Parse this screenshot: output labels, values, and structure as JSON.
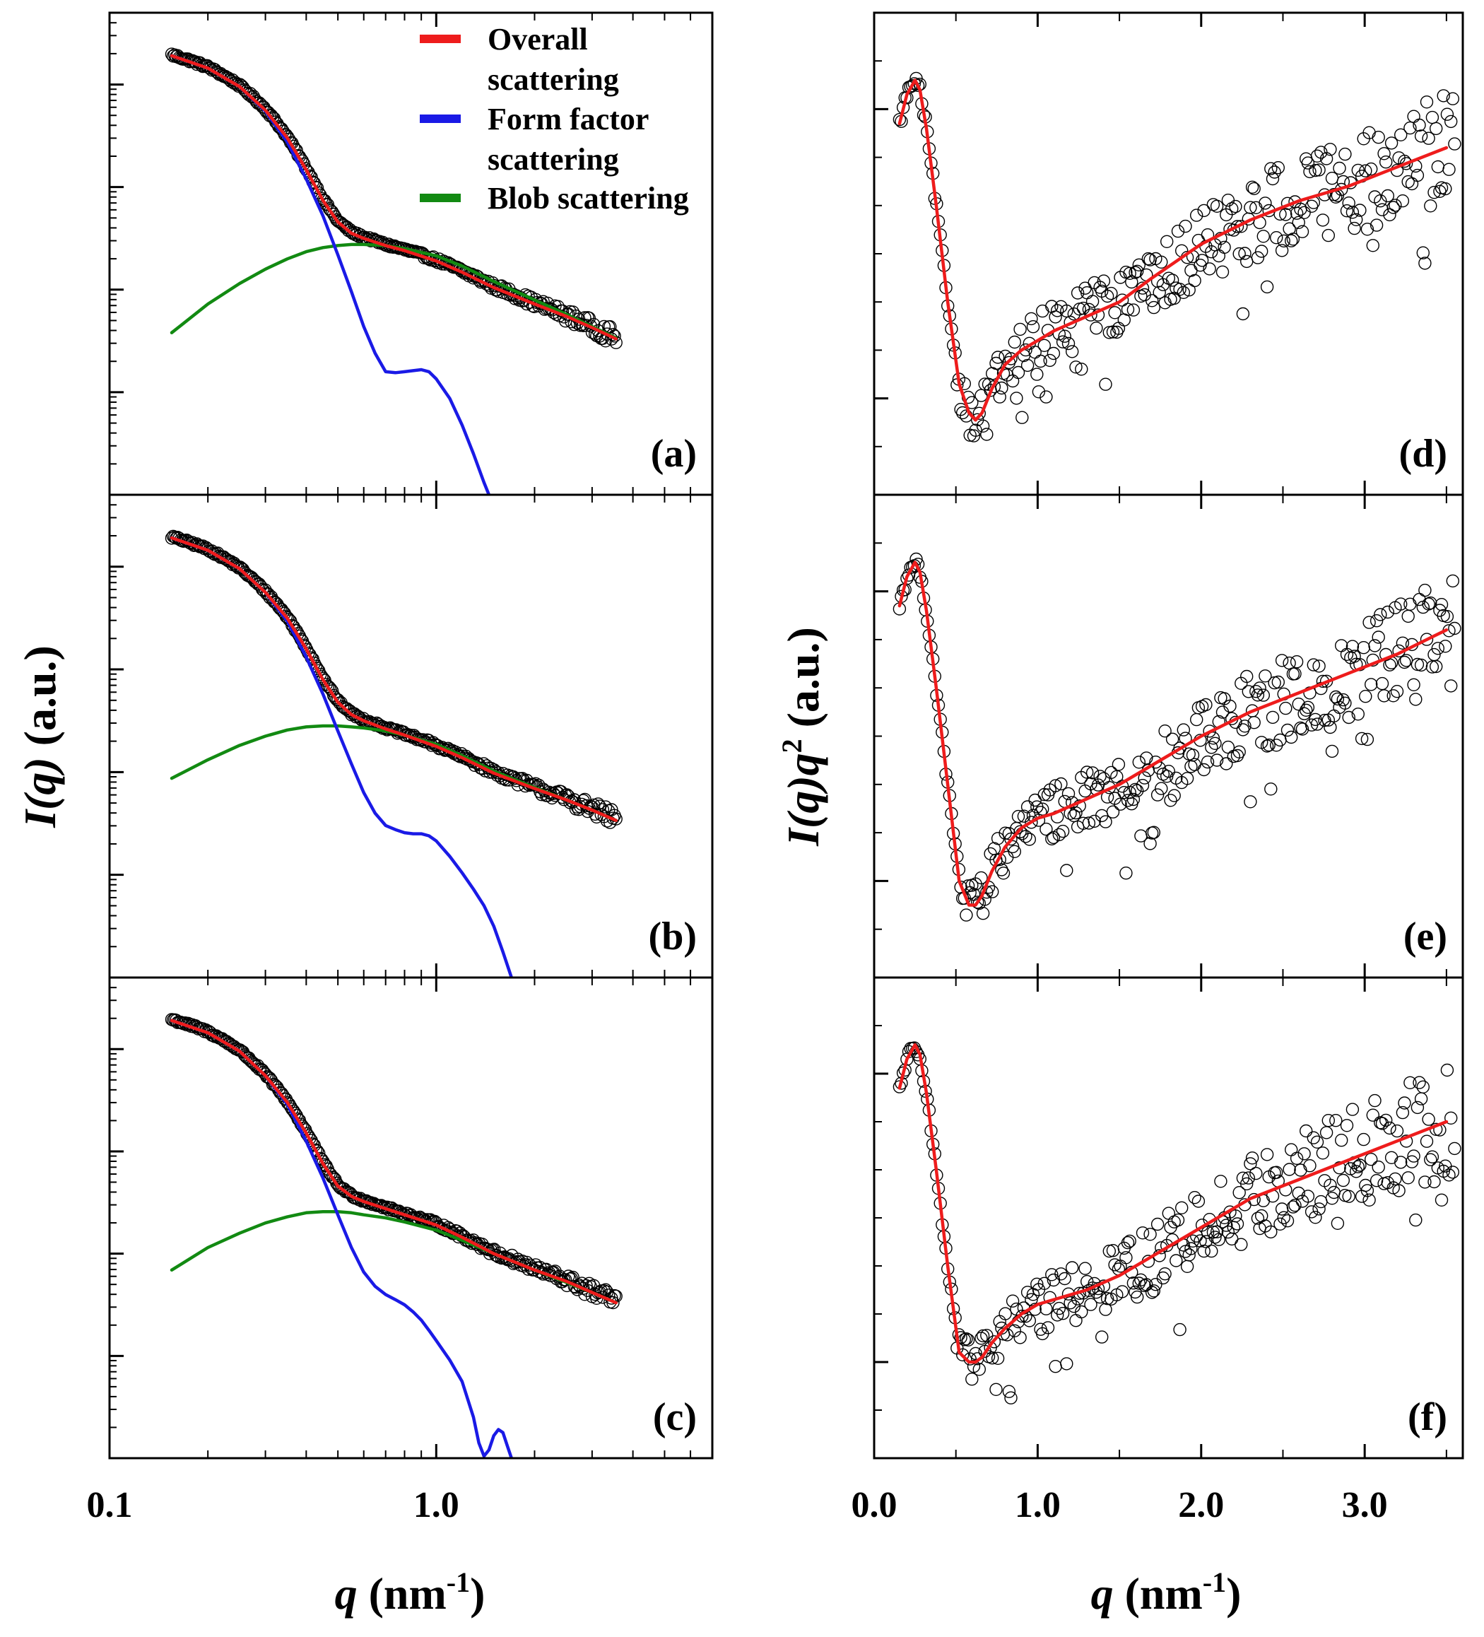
{
  "chart_data": {
    "type": "scatter",
    "title": "",
    "shared_axes": {
      "left_column": {
        "xlabel_sym": "q",
        "xlabel_unit": " (nm",
        "xlabel_sup": "-1",
        "xlabel_close": ")",
        "ylabel_sym": "I(q)",
        "ylabel_unit": " (a.u.)",
        "xscale": "log",
        "yscale": "log",
        "xlim": [
          0.1,
          7.0
        ],
        "xticks": [
          0.1,
          1.0
        ],
        "xtick_labels": [
          "0.1",
          "1.0"
        ]
      },
      "right_column": {
        "xlabel_sym": "q",
        "xlabel_unit": " (nm",
        "xlabel_sup": "-1",
        "xlabel_close": ")",
        "ylabel_sym": "I(q)q",
        "ylabel_sup": "2",
        "ylabel_unit": " (a.u.)",
        "xscale": "linear",
        "yscale": "linear",
        "xlim": [
          0.0,
          3.6
        ],
        "xticks": [
          0.0,
          1.0,
          2.0,
          3.0
        ],
        "xtick_labels": [
          "0.0",
          "1.0",
          "2.0",
          "3.0"
        ]
      }
    },
    "legend": {
      "placement": "top-right of panel (a)",
      "entries": [
        {
          "line1": "Overall",
          "line2": "scattering",
          "color": "#ee1c1c"
        },
        {
          "line1": "Form factor",
          "line2": "scattering",
          "color": "#1a1ae6"
        },
        {
          "line1": "Blob scattering",
          "line2": "",
          "color": "#128a12"
        }
      ]
    },
    "colors": {
      "overall": "#ee1c1c",
      "form_factor": "#1a1ae6",
      "blob": "#128a12",
      "data_points": "#000000"
    },
    "panels": [
      {
        "id": "a",
        "label": "(a)",
        "kind": "log",
        "ylim": [
          0,
          4.7
        ],
        "note": "y in decades (log10 I, arbitrary offset)",
        "series": [
          {
            "name": "Overall scattering",
            "kind": "line",
            "x": [
              0.155,
              0.2,
              0.25,
              0.3,
              0.35,
              0.4,
              0.45,
              0.5,
              0.55,
              0.6,
              0.7,
              0.8,
              1.0,
              1.2,
              1.5,
              2.0,
              2.5,
              3.0,
              3.55
            ],
            "y": [
              4.28,
              4.16,
              3.98,
              3.75,
              3.48,
              3.17,
              2.87,
              2.66,
              2.55,
              2.5,
              2.43,
              2.38,
              2.28,
              2.17,
              2.02,
              1.86,
              1.74,
              1.63,
              1.52
            ]
          },
          {
            "name": "Form factor scattering",
            "kind": "line",
            "x": [
              0.155,
              0.2,
              0.25,
              0.3,
              0.35,
              0.4,
              0.45,
              0.5,
              0.55,
              0.6,
              0.65,
              0.7,
              0.75,
              0.8,
              0.85,
              0.9,
              0.95,
              1.0,
              1.1,
              1.2,
              1.3,
              1.4,
              1.45
            ],
            "y": [
              4.28,
              4.16,
              3.98,
              3.74,
              3.44,
              3.08,
              2.72,
              2.34,
              1.98,
              1.64,
              1.38,
              1.2,
              1.19,
              1.2,
              1.21,
              1.22,
              1.2,
              1.13,
              0.94,
              0.68,
              0.4,
              0.12,
              0.0
            ]
          },
          {
            "name": "Blob scattering",
            "kind": "line",
            "x": [
              0.155,
              0.2,
              0.25,
              0.3,
              0.35,
              0.4,
              0.45,
              0.5,
              0.55,
              0.6,
              0.7,
              0.8,
              1.0,
              1.2,
              1.5,
              2.0,
              2.5,
              3.0,
              3.55
            ],
            "y": [
              1.58,
              1.86,
              2.06,
              2.2,
              2.3,
              2.37,
              2.41,
              2.43,
              2.44,
              2.44,
              2.43,
              2.4,
              2.33,
              2.23,
              2.08,
              1.9,
              1.76,
              1.64,
              1.53
            ]
          }
        ]
      },
      {
        "id": "b",
        "label": "(b)",
        "kind": "log",
        "ylim": [
          0,
          4.7
        ],
        "series": [
          {
            "name": "Overall scattering",
            "kind": "line",
            "x": [
              0.155,
              0.2,
              0.25,
              0.3,
              0.35,
              0.4,
              0.45,
              0.5,
              0.55,
              0.6,
              0.7,
              0.8,
              1.0,
              1.2,
              1.5,
              2.0,
              2.5,
              3.0,
              3.55
            ],
            "y": [
              4.28,
              4.16,
              3.98,
              3.75,
              3.5,
              3.2,
              2.9,
              2.68,
              2.56,
              2.5,
              2.42,
              2.36,
              2.25,
              2.14,
              1.99,
              1.84,
              1.73,
              1.63,
              1.53
            ]
          },
          {
            "name": "Form factor scattering",
            "kind": "line",
            "x": [
              0.155,
              0.2,
              0.25,
              0.3,
              0.35,
              0.4,
              0.45,
              0.5,
              0.55,
              0.6,
              0.65,
              0.7,
              0.75,
              0.8,
              0.85,
              0.9,
              0.95,
              1.0,
              1.1,
              1.2,
              1.3,
              1.4,
              1.5,
              1.6,
              1.7
            ],
            "y": [
              4.28,
              4.16,
              3.98,
              3.75,
              3.47,
              3.12,
              2.76,
              2.4,
              2.08,
              1.8,
              1.6,
              1.48,
              1.44,
              1.41,
              1.4,
              1.4,
              1.38,
              1.33,
              1.18,
              1.02,
              0.86,
              0.7,
              0.5,
              0.25,
              0.0
            ]
          },
          {
            "name": "Blob scattering",
            "kind": "line",
            "x": [
              0.155,
              0.2,
              0.25,
              0.3,
              0.35,
              0.4,
              0.45,
              0.5,
              0.55,
              0.6,
              0.7,
              0.8,
              1.0,
              1.2,
              1.5,
              2.0,
              2.5,
              3.0,
              3.55
            ],
            "y": [
              1.94,
              2.12,
              2.26,
              2.35,
              2.41,
              2.44,
              2.45,
              2.45,
              2.44,
              2.43,
              2.4,
              2.36,
              2.27,
              2.16,
              2.01,
              1.85,
              1.73,
              1.63,
              1.53
            ]
          }
        ]
      },
      {
        "id": "c",
        "label": "(c)",
        "kind": "log",
        "ylim": [
          0,
          4.7
        ],
        "series": [
          {
            "name": "Overall scattering",
            "kind": "line",
            "x": [
              0.155,
              0.2,
              0.25,
              0.3,
              0.35,
              0.4,
              0.45,
              0.5,
              0.55,
              0.6,
              0.7,
              0.8,
              1.0,
              1.2,
              1.5,
              2.0,
              2.5,
              3.0,
              3.55
            ],
            "y": [
              4.28,
              4.16,
              3.98,
              3.74,
              3.48,
              3.18,
              2.88,
              2.66,
              2.56,
              2.51,
              2.44,
              2.38,
              2.28,
              2.16,
              2.0,
              1.84,
              1.73,
              1.62,
              1.52
            ]
          },
          {
            "name": "Form factor scattering",
            "kind": "line",
            "x": [
              0.155,
              0.2,
              0.25,
              0.3,
              0.35,
              0.4,
              0.45,
              0.5,
              0.55,
              0.6,
              0.65,
              0.7,
              0.75,
              0.8,
              0.85,
              0.9,
              0.95,
              1.0,
              1.1,
              1.2,
              1.3,
              1.35,
              1.4,
              1.45,
              1.5,
              1.55,
              1.6,
              1.65,
              1.7
            ],
            "y": [
              4.28,
              4.16,
              3.98,
              3.74,
              3.46,
              3.1,
              2.74,
              2.38,
              2.06,
              1.82,
              1.68,
              1.6,
              1.55,
              1.5,
              1.43,
              1.35,
              1.25,
              1.15,
              0.96,
              0.75,
              0.4,
              0.15,
              0.02,
              0.08,
              0.22,
              0.28,
              0.25,
              0.12,
              0.0
            ]
          },
          {
            "name": "Blob scattering",
            "kind": "line",
            "x": [
              0.155,
              0.2,
              0.25,
              0.3,
              0.35,
              0.4,
              0.45,
              0.5,
              0.55,
              0.6,
              0.7,
              0.8,
              1.0,
              1.2,
              1.5,
              2.0,
              2.5,
              3.0,
              3.55
            ],
            "y": [
              1.84,
              2.06,
              2.2,
              2.3,
              2.36,
              2.4,
              2.41,
              2.41,
              2.4,
              2.38,
              2.35,
              2.31,
              2.23,
              2.13,
              2.0,
              1.84,
              1.72,
              1.62,
              1.52
            ]
          }
        ]
      },
      {
        "id": "d",
        "label": "(d)",
        "kind": "linear",
        "ylim": [
          0,
          1.0
        ],
        "series": [
          {
            "name": "Overall scattering",
            "kind": "line",
            "x": [
              0.155,
              0.2,
              0.25,
              0.28,
              0.32,
              0.38,
              0.45,
              0.52,
              0.58,
              0.62,
              0.66,
              0.72,
              0.8,
              0.9,
              1.0,
              1.1,
              1.3,
              1.5,
              1.7,
              2.0,
              2.3,
              2.6,
              2.9,
              3.2,
              3.5
            ],
            "y": [
              0.77,
              0.83,
              0.86,
              0.84,
              0.76,
              0.6,
              0.4,
              0.23,
              0.17,
              0.155,
              0.17,
              0.22,
              0.27,
              0.3,
              0.32,
              0.34,
              0.37,
              0.4,
              0.45,
              0.52,
              0.57,
              0.61,
              0.64,
              0.68,
              0.72
            ]
          }
        ]
      },
      {
        "id": "e",
        "label": "(e)",
        "kind": "linear",
        "ylim": [
          0,
          1.0
        ],
        "series": [
          {
            "name": "Overall scattering",
            "kind": "line",
            "x": [
              0.155,
              0.2,
              0.25,
              0.28,
              0.32,
              0.38,
              0.45,
              0.52,
              0.58,
              0.62,
              0.66,
              0.72,
              0.8,
              0.9,
              1.0,
              1.1,
              1.3,
              1.5,
              1.7,
              2.0,
              2.3,
              2.6,
              2.9,
              3.2,
              3.5
            ],
            "y": [
              0.77,
              0.83,
              0.86,
              0.84,
              0.76,
              0.6,
              0.4,
              0.2,
              0.15,
              0.15,
              0.17,
              0.22,
              0.27,
              0.31,
              0.33,
              0.34,
              0.37,
              0.4,
              0.44,
              0.5,
              0.55,
              0.59,
              0.63,
              0.67,
              0.72
            ]
          }
        ]
      },
      {
        "id": "f",
        "label": "(f)",
        "kind": "linear",
        "ylim": [
          0,
          1.0
        ],
        "series": [
          {
            "name": "Overall scattering",
            "kind": "line",
            "x": [
              0.155,
              0.2,
              0.25,
              0.28,
              0.32,
              0.38,
              0.45,
              0.52,
              0.58,
              0.62,
              0.66,
              0.72,
              0.8,
              0.9,
              1.0,
              1.1,
              1.3,
              1.5,
              1.7,
              2.0,
              2.3,
              2.6,
              2.9,
              3.2,
              3.5
            ],
            "y": [
              0.77,
              0.83,
              0.86,
              0.84,
              0.76,
              0.6,
              0.4,
              0.22,
              0.2,
              0.2,
              0.21,
              0.24,
              0.27,
              0.3,
              0.32,
              0.33,
              0.35,
              0.38,
              0.42,
              0.48,
              0.54,
              0.58,
              0.62,
              0.66,
              0.7
            ]
          }
        ]
      }
    ]
  }
}
